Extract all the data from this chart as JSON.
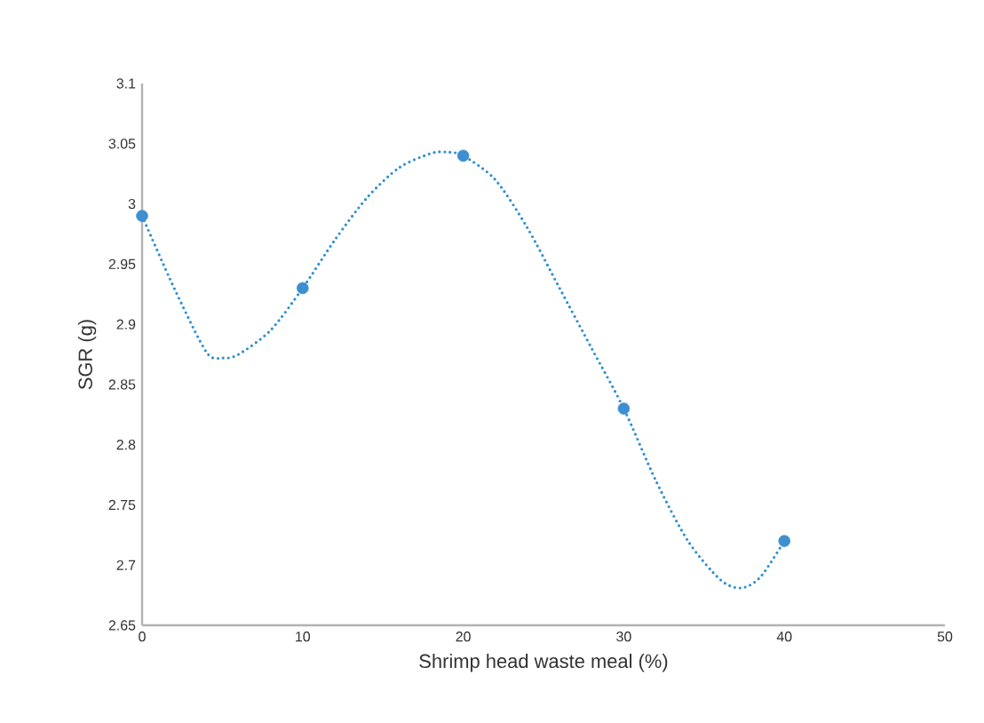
{
  "chart_data": {
    "type": "scatter",
    "xlabel": "Shrimp head waste meal (%)",
    "ylabel": "SGR (g)",
    "xlim": [
      0,
      50
    ],
    "xticks": [
      0,
      10,
      20,
      30,
      40,
      50
    ],
    "ylim": [
      2.65,
      3.1
    ],
    "yticks": [
      2.65,
      2.7,
      2.75,
      2.8,
      2.85,
      2.9,
      2.95,
      3,
      3.05,
      3.1
    ],
    "grid": false,
    "series": [
      {
        "color": "#3d8fcf",
        "marker": "circle",
        "x": [
          0,
          10,
          20,
          30,
          40
        ],
        "values": [
          2.99,
          2.93,
          3.04,
          2.83,
          2.72
        ]
      },
      {
        "type": "line",
        "color": "#2e8fd0",
        "line_style": "dotted",
        "marker": "none",
        "x": [
          0,
          2,
          4,
          5,
          6,
          8,
          10,
          12,
          14,
          16,
          18,
          19,
          20,
          22,
          24,
          26,
          28,
          30,
          32,
          34,
          36,
          37.3,
          38.5,
          40
        ],
        "values": [
          2.99,
          2.93,
          2.877,
          2.872,
          2.875,
          2.895,
          2.93,
          2.97,
          3.005,
          3.03,
          3.042,
          3.043,
          3.04,
          3.02,
          2.98,
          2.93,
          2.88,
          2.83,
          2.77,
          2.72,
          2.688,
          2.681,
          2.69,
          2.72
        ]
      }
    ]
  }
}
